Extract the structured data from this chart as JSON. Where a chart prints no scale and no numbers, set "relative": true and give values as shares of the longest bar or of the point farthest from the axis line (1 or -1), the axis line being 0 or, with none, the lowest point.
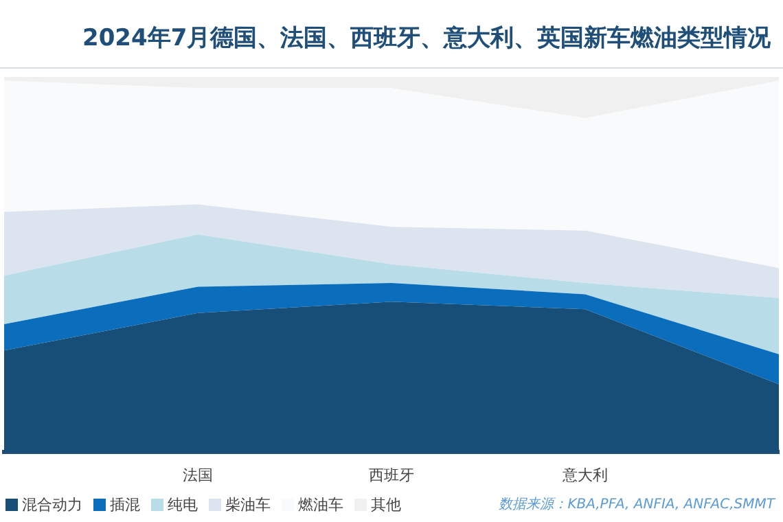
{
  "chart_data": {
    "type": "area",
    "title": "2024年7月德国、法国、西班牙、意大利、英国新车燃油类型情况",
    "categories": [
      null,
      "法国",
      "西班牙",
      "意大利",
      null
    ],
    "stacked": true,
    "relative": true,
    "legend": "bottom",
    "annotations": [
      "数据来源：KBA,PFA, ANFIA, ANFAC,SMMT"
    ],
    "series": [
      {
        "name": "混合动力",
        "color": "#174e77",
        "values": [
          0.27,
          0.37,
          0.4,
          0.38,
          0.18
        ]
      },
      {
        "name": "插混",
        "color": "#0a6ebd",
        "values": [
          0.07,
          0.07,
          0.05,
          0.04,
          0.08
        ]
      },
      {
        "name": "纯电",
        "color": "#b8dde8",
        "values": [
          0.13,
          0.14,
          0.05,
          0.03,
          0.15
        ]
      },
      {
        "name": "柴油车",
        "color": "#dce4f0",
        "values": [
          0.17,
          0.08,
          0.1,
          0.14,
          0.08
        ]
      },
      {
        "name": "燃油车",
        "color": "#f9fafb",
        "values": [
          0.35,
          0.31,
          0.37,
          0.3,
          0.5
        ]
      },
      {
        "name": "其他",
        "color": "#f0f0f0",
        "values": [
          0.01,
          0.03,
          0.03,
          0.11,
          0.01
        ]
      }
    ]
  }
}
